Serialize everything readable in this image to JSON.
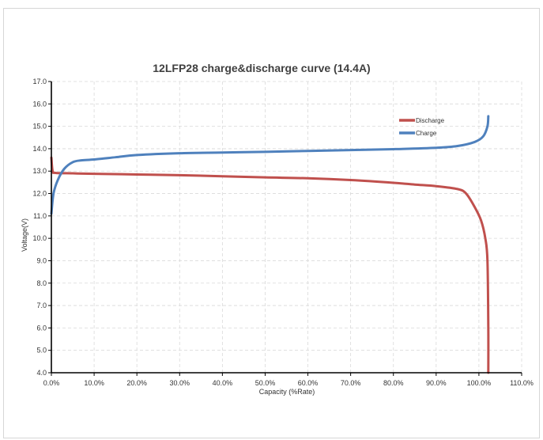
{
  "chart_data": {
    "type": "line",
    "title": "12LFP28 charge&discharge curve (14.4A)",
    "xlabel": "Capacity (%Rate)",
    "ylabel": "Voltage(V)",
    "xlim": [
      0,
      110
    ],
    "ylim": [
      4,
      17
    ],
    "x_ticks": [
      "0.0%",
      "10.0%",
      "20.0%",
      "30.0%",
      "40.0%",
      "50.0%",
      "60.0%",
      "70.0%",
      "80.0%",
      "90.0%",
      "100.0%",
      "110.0%"
    ],
    "y_ticks": [
      "4.0",
      "5.0",
      "6.0",
      "7.0",
      "8.0",
      "9.0",
      "10.0",
      "11.0",
      "12.0",
      "13.0",
      "14.0",
      "15.0",
      "16.0",
      "17.0"
    ],
    "grid": true,
    "legend_position": "top-right",
    "series": [
      {
        "name": "Discharge",
        "color": "#c0504d",
        "points": [
          [
            0,
            13.6
          ],
          [
            0.3,
            13.0
          ],
          [
            1,
            12.92
          ],
          [
            5,
            12.9
          ],
          [
            10,
            12.88
          ],
          [
            20,
            12.85
          ],
          [
            30,
            12.82
          ],
          [
            40,
            12.77
          ],
          [
            50,
            12.72
          ],
          [
            60,
            12.68
          ],
          [
            70,
            12.6
          ],
          [
            80,
            12.48
          ],
          [
            85,
            12.4
          ],
          [
            90,
            12.33
          ],
          [
            95,
            12.2
          ],
          [
            97,
            12.0
          ],
          [
            99,
            11.4
          ],
          [
            100.5,
            10.8
          ],
          [
            101.5,
            10.0
          ],
          [
            102,
            9.0
          ],
          [
            102.2,
            6.0
          ],
          [
            102.2,
            4.0
          ]
        ]
      },
      {
        "name": "Charge",
        "color": "#4f81bd",
        "points": [
          [
            0,
            11.1
          ],
          [
            0.5,
            12.0
          ],
          [
            1.5,
            12.6
          ],
          [
            3,
            13.1
          ],
          [
            5,
            13.4
          ],
          [
            7,
            13.48
          ],
          [
            10,
            13.52
          ],
          [
            15,
            13.62
          ],
          [
            20,
            13.72
          ],
          [
            30,
            13.8
          ],
          [
            40,
            13.83
          ],
          [
            50,
            13.86
          ],
          [
            60,
            13.9
          ],
          [
            70,
            13.94
          ],
          [
            80,
            13.98
          ],
          [
            90,
            14.04
          ],
          [
            95,
            14.12
          ],
          [
            99,
            14.3
          ],
          [
            101,
            14.55
          ],
          [
            102,
            15.0
          ],
          [
            102.2,
            15.45
          ]
        ]
      }
    ]
  }
}
